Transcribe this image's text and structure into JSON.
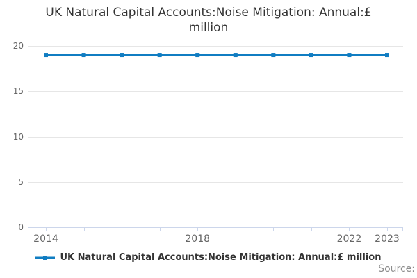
{
  "page": {
    "title_full": "UK Natural Capital Accounts:Noise Mitigation: Annual:£ million",
    "title_lines": [
      "UK Natural Capital Accounts:Noise Mitigation: Annual:£",
      "million"
    ],
    "source_label": "Source:"
  },
  "legend": {
    "label": "UK Natural Capital Accounts:Noise Mitigation: Annual:£ million",
    "marker_icon": "line-with-square-marker"
  },
  "chart_data": {
    "type": "line",
    "title": "UK Natural Capital Accounts:Noise Mitigation: Annual:£ million",
    "x": [
      2014,
      2015,
      2016,
      2017,
      2018,
      2019,
      2020,
      2021,
      2022,
      2023
    ],
    "series": [
      {
        "name": "UK Natural Capital Accounts:Noise Mitigation: Annual:£ million",
        "values": [
          19,
          19,
          19,
          19,
          19,
          19,
          19,
          19,
          19,
          19
        ],
        "color": "#107dc2",
        "marker": "square"
      }
    ],
    "xlabel": "",
    "ylabel": "",
    "ylim": [
      0,
      20
    ],
    "yticks": [
      0,
      5,
      10,
      15,
      20
    ],
    "xticks_labeled": [
      2014,
      2018,
      2022,
      2023
    ],
    "grid": true,
    "legend_position": "bottom",
    "colors": {
      "grid": "#e6e6e6",
      "axis": "#ccd6eb",
      "tick_label": "#666666",
      "title": "#333333",
      "source": "#8c8c8c"
    }
  }
}
